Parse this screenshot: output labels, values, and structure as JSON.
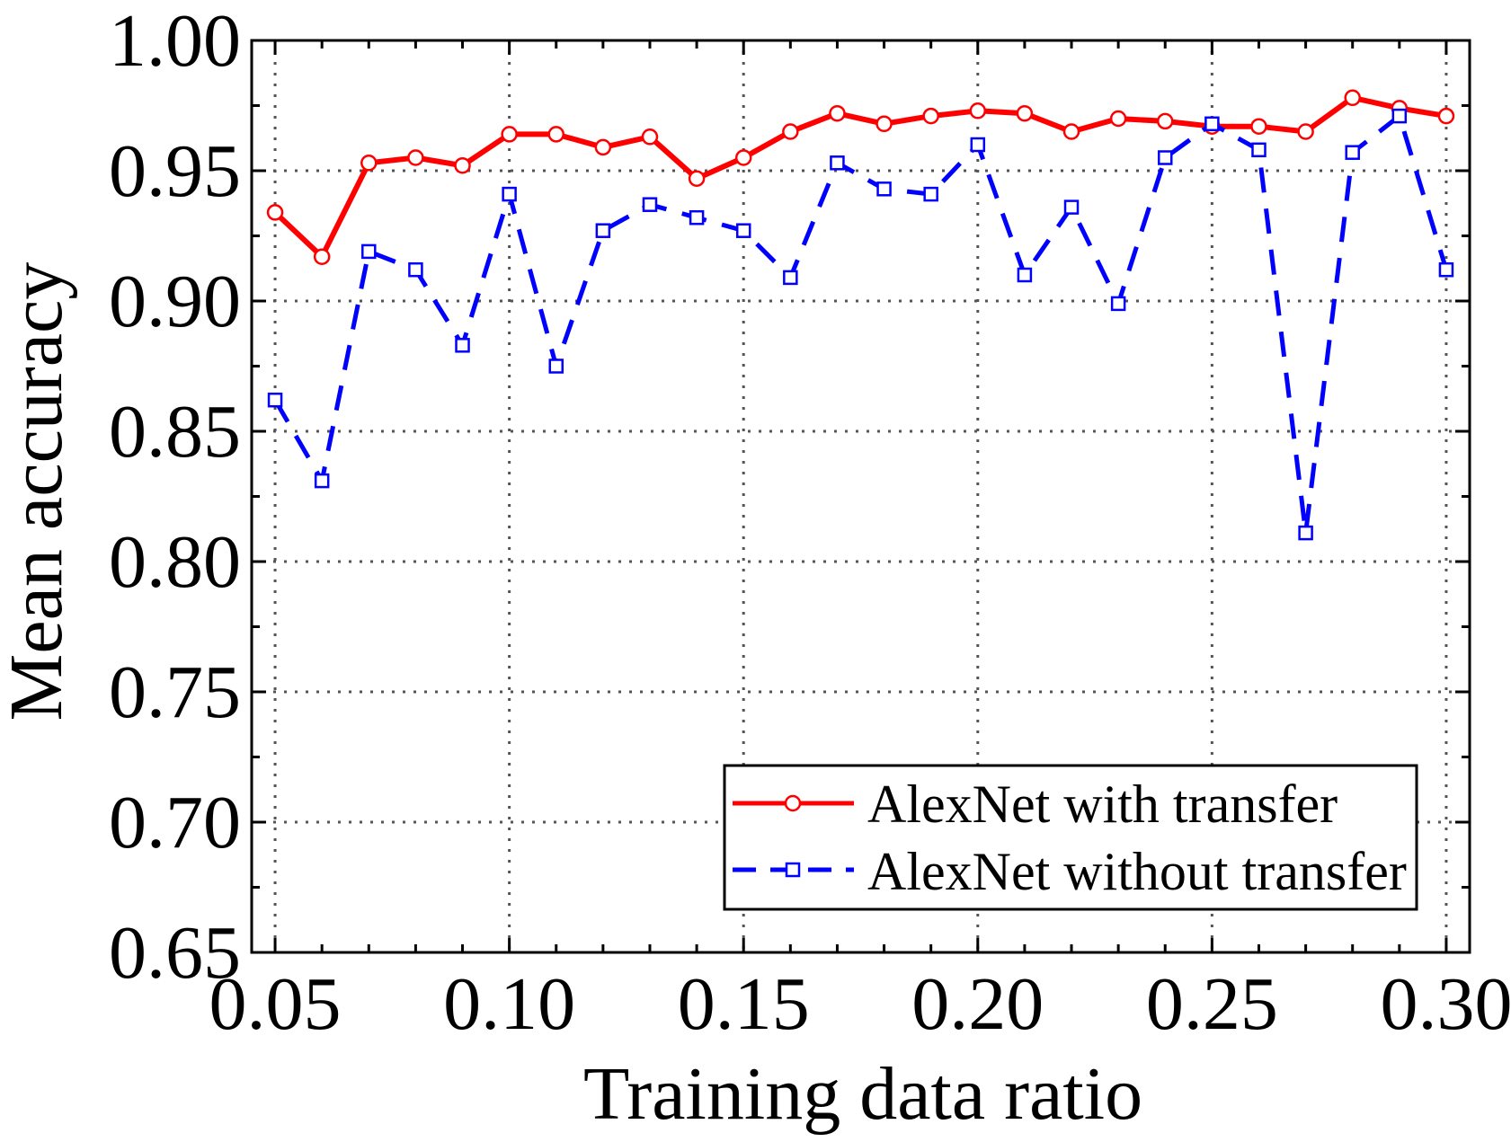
{
  "chart_data": {
    "type": "line",
    "title": "",
    "xlabel": "Training data ratio",
    "ylabel": "Mean accuracy",
    "xlim": [
      0.045,
      0.305
    ],
    "ylim": [
      0.65,
      1.0
    ],
    "grid": true,
    "legend_position": "bottom-right",
    "x": [
      0.05,
      0.06,
      0.07,
      0.08,
      0.09,
      0.1,
      0.11,
      0.12,
      0.13,
      0.14,
      0.15,
      0.16,
      0.17,
      0.18,
      0.19,
      0.2,
      0.21,
      0.22,
      0.23,
      0.24,
      0.25,
      0.26,
      0.27,
      0.28,
      0.29,
      0.3
    ],
    "x_ticks": [
      0.05,
      0.1,
      0.15,
      0.2,
      0.25,
      0.3
    ],
    "x_tick_labels": [
      "0.05",
      "0.10",
      "0.15",
      "0.20",
      "0.25",
      "0.30"
    ],
    "y_ticks": [
      0.65,
      0.7,
      0.75,
      0.8,
      0.85,
      0.9,
      0.95,
      1.0
    ],
    "y_tick_labels": [
      "0.65",
      "0.70",
      "0.75",
      "0.80",
      "0.85",
      "0.90",
      "0.95",
      "1.00"
    ],
    "series": [
      {
        "name": "AlexNet with transfer",
        "color": "#ff0000",
        "marker": "circle",
        "line_style": "solid",
        "values": [
          0.934,
          0.917,
          0.953,
          0.955,
          0.952,
          0.964,
          0.964,
          0.959,
          0.963,
          0.947,
          0.955,
          0.965,
          0.972,
          0.968,
          0.971,
          0.973,
          0.972,
          0.965,
          0.97,
          0.969,
          0.967,
          0.967,
          0.965,
          0.978,
          0.974,
          0.971
        ]
      },
      {
        "name": "AlexNet without transfer",
        "color": "#0000ff",
        "marker": "square",
        "line_style": "dashed",
        "values": [
          0.862,
          0.831,
          0.919,
          0.912,
          0.883,
          0.941,
          0.875,
          0.927,
          0.937,
          0.932,
          0.927,
          0.909,
          0.953,
          0.943,
          0.941,
          0.96,
          0.91,
          0.936,
          0.899,
          0.955,
          0.968,
          0.958,
          0.811,
          0.957,
          0.971,
          0.912
        ]
      }
    ]
  }
}
